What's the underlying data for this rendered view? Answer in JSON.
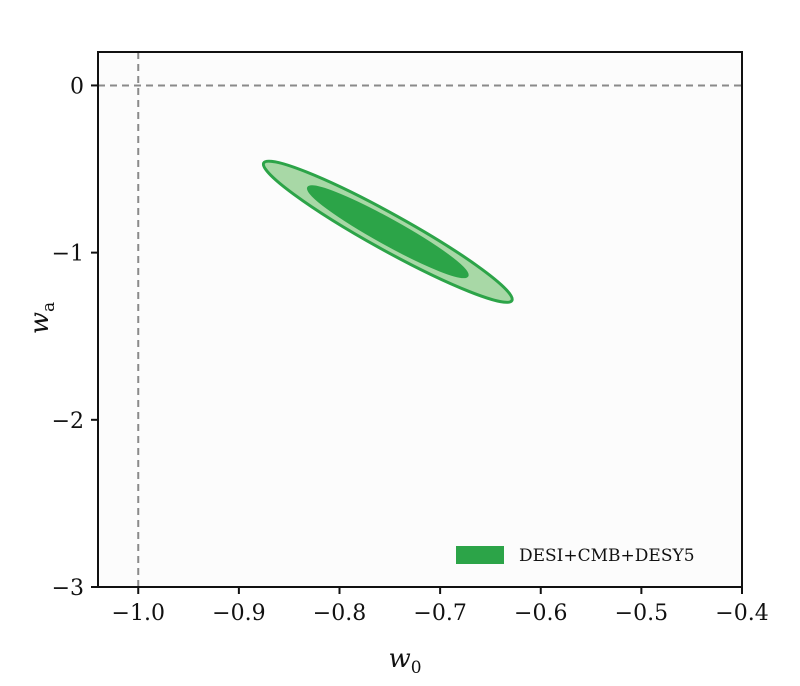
{
  "chart_data": {
    "type": "contour",
    "xlabel": "w",
    "xlabel_sub": "0",
    "ylabel": "w",
    "ylabel_sub": "a",
    "xlim": [
      -1.04,
      -0.4
    ],
    "ylim": [
      -3.0,
      0.2
    ],
    "xticks": [
      -1.0,
      -0.9,
      -0.8,
      -0.7,
      -0.6,
      -0.5,
      -0.4
    ],
    "xtick_labels": [
      "−1.0",
      "−0.9",
      "−0.8",
      "−0.7",
      "−0.6",
      "−0.5",
      "−0.4"
    ],
    "yticks": [
      0,
      -1,
      -2,
      -3
    ],
    "ytick_labels": [
      "0",
      "−1",
      "−2",
      "−3"
    ],
    "reference_lines": {
      "x": -1.0,
      "y": 0.0
    },
    "series": [
      {
        "name": "DESI+CMB+DESY5",
        "color": "#2ca448",
        "center": [
          -0.752,
          -0.875
        ],
        "contours": [
          {
            "level": "95%",
            "fill": "#a8d8a6",
            "edge": "#2ca448",
            "semi_major_w0": 0.141,
            "semi_minor_w0": 0.018,
            "angle_deg": -29.0
          },
          {
            "level": "68%",
            "fill": "#2ca448",
            "edge": "#2ca448",
            "semi_major_w0": 0.09,
            "semi_minor_w0": 0.0115,
            "angle_deg": -29.0
          }
        ]
      }
    ],
    "legend": {
      "position": "lower-right",
      "label": "DESI+CMB+DESY5"
    },
    "grid": false
  }
}
